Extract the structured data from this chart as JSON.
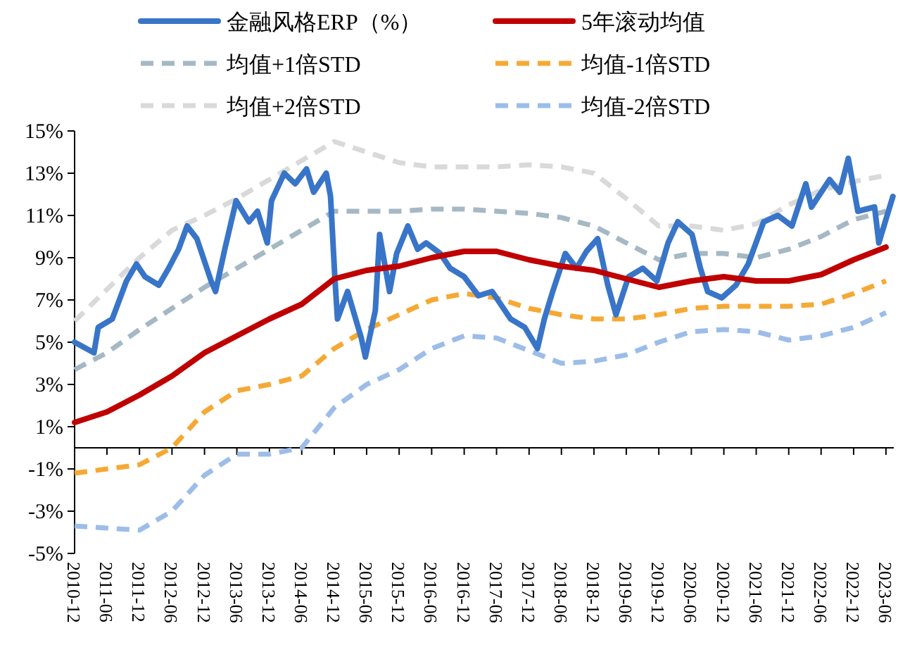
{
  "chart_data": {
    "type": "line",
    "legend": "top",
    "ylim": [
      -5,
      15
    ],
    "yticks": [
      {
        "value": -5,
        "label": "-5%"
      },
      {
        "value": -3,
        "label": "-3%"
      },
      {
        "value": -1,
        "label": "-1%"
      },
      {
        "value": 1,
        "label": "1%"
      },
      {
        "value": 3,
        "label": "3%"
      },
      {
        "value": 5,
        "label": "5%"
      },
      {
        "value": 7,
        "label": "7%"
      },
      {
        "value": 9,
        "label": "9%"
      },
      {
        "value": 11,
        "label": "11%"
      },
      {
        "value": 13,
        "label": "13%"
      },
      {
        "value": 15,
        "label": "15%"
      }
    ],
    "xlim": [
      "2010-12-01",
      "2023-07-15"
    ],
    "xticks": [
      "2010-12",
      "2011-06",
      "2011-12",
      "2012-06",
      "2012-12",
      "2013-06",
      "2013-12",
      "2014-06",
      "2014-12",
      "2015-06",
      "2015-12",
      "2016-06",
      "2016-12",
      "2017-06",
      "2017-12",
      "2018-06",
      "2018-12",
      "2019-06",
      "2019-12",
      "2020-06",
      "2020-12",
      "2021-06",
      "2021-12",
      "2022-06",
      "2022-12",
      "2023-06"
    ],
    "series": [
      {
        "name": "金融风格ERP（%）",
        "color": "#3875c8",
        "line_style": "solid",
        "x": [
          "2010-12-01",
          "2011-03-20",
          "2011-04-13",
          "2011-07-01",
          "2011-09-19",
          "2011-11-14",
          "2012-01-01",
          "2012-03-19",
          "2012-05-13",
          "2012-07-08",
          "2012-08-25",
          "2012-10-19",
          "2013-01-07",
          "2013-02-01",
          "2013-03-25",
          "2013-05-28",
          "2013-08-08",
          "2013-09-25",
          "2013-11-19",
          "2013-12-13",
          "2014-02-23",
          "2014-04-25",
          "2014-06-28",
          "2014-08-07",
          "2014-10-17",
          "2014-11-10",
          "2014-12-04",
          "2014-12-19",
          "2015-02-14",
          "2015-05-02",
          "2015-05-25",
          "2015-07-20",
          "2015-08-13",
          "2015-10-08",
          "2015-11-17",
          "2016-01-19",
          "2016-03-14",
          "2016-05-01",
          "2016-07-19",
          "2016-09-13",
          "2016-12-01",
          "2017-02-19",
          "2017-05-07",
          "2017-08-19",
          "2017-11-07",
          "2018-01-17",
          "2018-02-25",
          "2018-04-13",
          "2018-06-23",
          "2018-08-25",
          "2018-10-20",
          "2018-12-22",
          "2019-02-17",
          "2019-04-04",
          "2019-06-14",
          "2019-09-02",
          "2019-11-20",
          "2020-01-22",
          "2020-03-17",
          "2020-06-05",
          "2020-07-22",
          "2020-09-01",
          "2020-11-19",
          "2021-02-07",
          "2021-04-17",
          "2021-07-13",
          "2021-10-01",
          "2021-12-19",
          "2022-03-07",
          "2022-04-08",
          "2022-07-19",
          "2022-09-14",
          "2022-11-01",
          "2022-12-25",
          "2023-03-29",
          "2023-04-22",
          "2023-07-10"
        ],
        "values": [
          5.0,
          4.5,
          5.7,
          6.1,
          7.9,
          8.7,
          8.1,
          7.7,
          8.5,
          9.4,
          10.5,
          9.9,
          7.9,
          7.4,
          9.4,
          11.7,
          10.7,
          11.2,
          9.7,
          11.7,
          13.0,
          12.5,
          13.2,
          12.1,
          13.0,
          11.9,
          8.1,
          6.1,
          7.4,
          5.2,
          4.3,
          6.5,
          10.1,
          7.4,
          9.2,
          10.5,
          9.4,
          9.7,
          9.2,
          8.5,
          8.1,
          7.2,
          7.4,
          6.1,
          5.7,
          4.7,
          6.1,
          7.4,
          9.2,
          8.5,
          9.3,
          9.9,
          7.7,
          6.3,
          8.1,
          8.5,
          7.9,
          9.7,
          10.7,
          10.1,
          8.5,
          7.4,
          7.1,
          7.7,
          8.7,
          10.7,
          11.0,
          10.5,
          12.5,
          11.4,
          12.7,
          12.1,
          13.7,
          11.2,
          11.4,
          9.7,
          11.9
        ]
      },
      {
        "name": "5年滚动均值",
        "color": "#c00000",
        "line_style": "solid",
        "x": [
          "2010-12",
          "2011-06",
          "2011-12",
          "2012-06",
          "2012-12",
          "2013-06",
          "2013-12",
          "2014-06",
          "2014-12",
          "2015-06",
          "2015-12",
          "2016-06",
          "2016-12",
          "2017-06",
          "2017-12",
          "2018-06",
          "2018-12",
          "2019-06",
          "2019-12",
          "2020-06",
          "2020-12",
          "2021-06",
          "2021-12",
          "2022-06",
          "2022-12",
          "2023-06"
        ],
        "values": [
          1.2,
          1.7,
          2.5,
          3.4,
          4.5,
          5.3,
          6.1,
          6.8,
          8.0,
          8.4,
          8.6,
          9.0,
          9.3,
          9.3,
          8.9,
          8.6,
          8.4,
          8.0,
          7.6,
          7.9,
          8.1,
          7.9,
          7.9,
          8.2,
          8.9,
          9.5
        ]
      },
      {
        "name": "均值+1倍STD",
        "color": "#a5b8c4",
        "line_style": "dashed",
        "x": [
          "2010-12",
          "2011-06",
          "2011-12",
          "2012-06",
          "2012-12",
          "2013-06",
          "2013-12",
          "2014-06",
          "2014-12",
          "2015-06",
          "2015-12",
          "2016-06",
          "2016-12",
          "2017-06",
          "2017-12",
          "2018-06",
          "2018-12",
          "2019-06",
          "2019-12",
          "2020-06",
          "2020-12",
          "2021-06",
          "2021-12",
          "2022-06",
          "2022-12",
          "2023-06"
        ],
        "values": [
          3.7,
          4.5,
          5.6,
          6.6,
          7.6,
          8.5,
          9.4,
          10.3,
          11.2,
          11.2,
          11.2,
          11.3,
          11.3,
          11.2,
          11.1,
          10.9,
          10.5,
          9.7,
          8.9,
          9.2,
          9.2,
          9.0,
          9.4,
          10.0,
          10.8,
          11.2
        ]
      },
      {
        "name": "均值-1倍STD",
        "color": "#f5a935",
        "line_style": "dashed",
        "x": [
          "2010-12",
          "2011-06",
          "2011-12",
          "2012-06",
          "2012-12",
          "2013-06",
          "2013-12",
          "2014-06",
          "2014-12",
          "2015-06",
          "2015-12",
          "2016-06",
          "2016-12",
          "2017-06",
          "2017-12",
          "2018-06",
          "2018-12",
          "2019-06",
          "2019-12",
          "2020-06",
          "2020-12",
          "2021-06",
          "2021-12",
          "2022-06",
          "2022-12",
          "2023-06"
        ],
        "values": [
          -1.2,
          -1.0,
          -0.8,
          0.0,
          1.7,
          2.7,
          3.0,
          3.4,
          4.7,
          5.6,
          6.3,
          7.0,
          7.3,
          7.1,
          6.6,
          6.3,
          6.1,
          6.1,
          6.3,
          6.6,
          6.7,
          6.7,
          6.7,
          6.8,
          7.3,
          7.9
        ]
      },
      {
        "name": "均值+2倍STD",
        "color": "#d9d9d9",
        "line_style": "dashed",
        "x": [
          "2010-12",
          "2011-06",
          "2011-12",
          "2012-06",
          "2012-12",
          "2013-06",
          "2013-12",
          "2014-06",
          "2014-12",
          "2015-06",
          "2015-12",
          "2016-06",
          "2016-12",
          "2017-06",
          "2017-12",
          "2018-06",
          "2018-12",
          "2019-06",
          "2019-12",
          "2020-06",
          "2020-12",
          "2021-06",
          "2021-12",
          "2022-06",
          "2022-12",
          "2023-06"
        ],
        "values": [
          6.0,
          7.5,
          9.0,
          10.3,
          11.0,
          11.8,
          12.7,
          13.6,
          14.5,
          14.0,
          13.5,
          13.3,
          13.3,
          13.3,
          13.4,
          13.3,
          13.0,
          11.8,
          10.5,
          10.5,
          10.3,
          10.6,
          11.5,
          12.2,
          12.6,
          12.9
        ]
      },
      {
        "name": "均值-2倍STD",
        "color": "#9dbde8",
        "line_style": "dashed",
        "x": [
          "2010-12",
          "2011-06",
          "2011-12",
          "2012-06",
          "2012-12",
          "2013-06",
          "2013-12",
          "2014-06",
          "2014-12",
          "2015-06",
          "2015-12",
          "2016-06",
          "2016-12",
          "2017-06",
          "2017-12",
          "2018-06",
          "2018-12",
          "2019-06",
          "2019-12",
          "2020-06",
          "2020-12",
          "2021-06",
          "2021-12",
          "2022-06",
          "2022-12",
          "2023-06"
        ],
        "values": [
          -3.7,
          -3.8,
          -3.9,
          -3.0,
          -1.3,
          -0.3,
          -0.3,
          0.0,
          1.9,
          3.0,
          3.7,
          4.7,
          5.3,
          5.2,
          4.6,
          4.0,
          4.1,
          4.4,
          5.0,
          5.5,
          5.6,
          5.5,
          5.1,
          5.3,
          5.7,
          6.4
        ]
      }
    ]
  }
}
